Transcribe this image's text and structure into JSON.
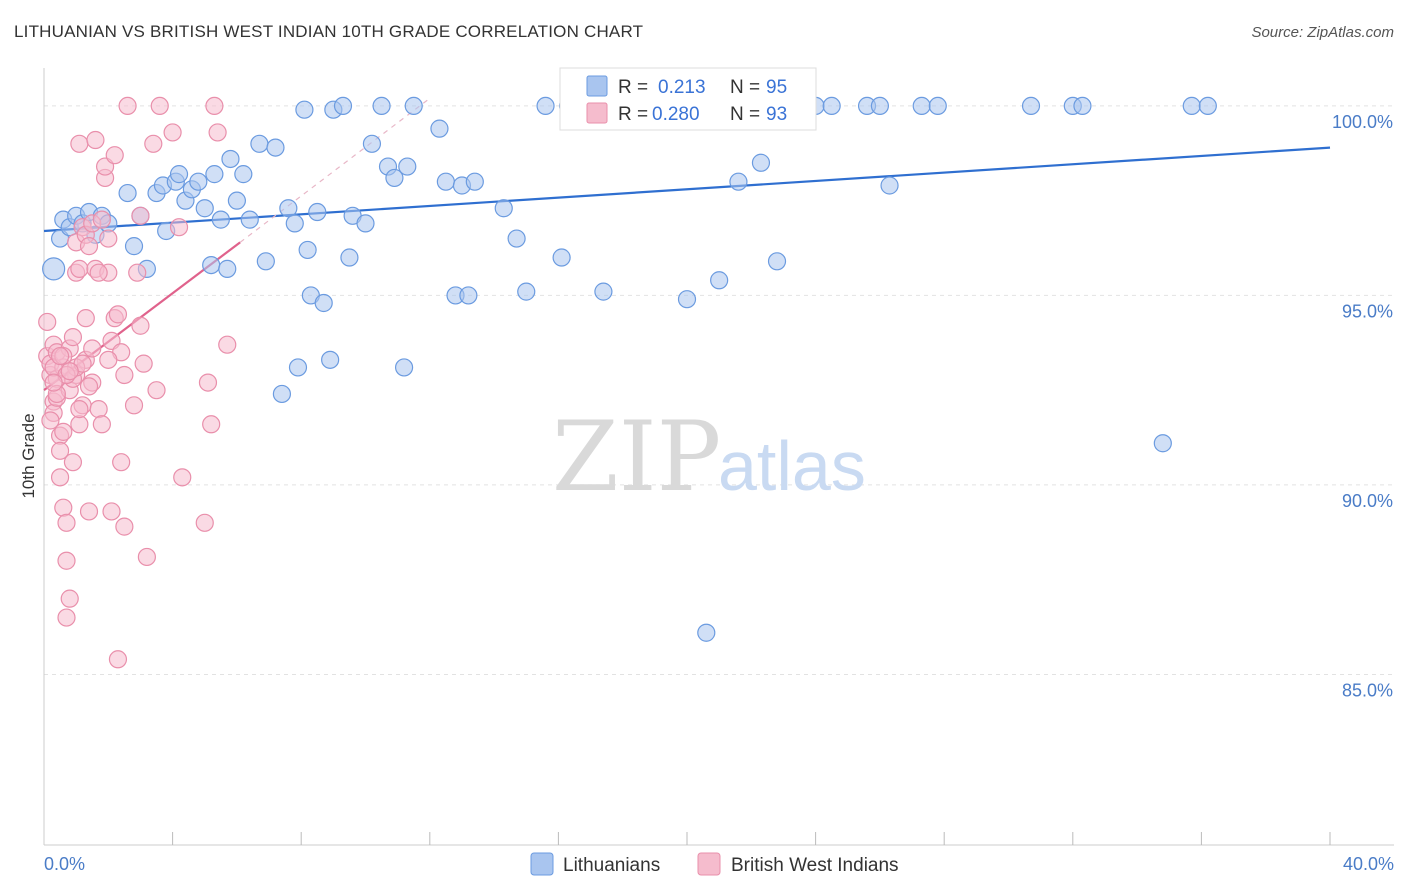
{
  "title": "LITHUANIAN VS BRITISH WEST INDIAN 10TH GRADE CORRELATION CHART",
  "source": "Source: ZipAtlas.com",
  "watermark": {
    "zip": "ZIP",
    "atlas": "atlas"
  },
  "chart_data": {
    "type": "scatter",
    "title": "LITHUANIAN VS BRITISH WEST INDIAN 10TH GRADE CORRELATION CHART",
    "xlabel": "",
    "ylabel": "10th Grade",
    "xlim": [
      0,
      40
    ],
    "ylim": [
      80.5,
      101
    ],
    "x_tick_labels": {
      "min": "0.0%",
      "max": "40.0%"
    },
    "y_ticks": [
      {
        "value": 100,
        "label": "100.0%"
      },
      {
        "value": 95,
        "label": "95.0%"
      },
      {
        "value": 90,
        "label": "90.0%"
      },
      {
        "value": 85,
        "label": "85.0%"
      }
    ],
    "grid": true,
    "legend_position": "top-center",
    "series": [
      {
        "name": "Lithuanians",
        "color": "#6b9be0",
        "fill": "#a9c5ef",
        "line_color": "#2f6fd0",
        "R": "0.213",
        "N": "95",
        "trend": {
          "x0": 0,
          "y0": 96.7,
          "x1": 40,
          "y1": 98.9
        },
        "points": [
          [
            0.3,
            95.7
          ],
          [
            0.5,
            96.5
          ],
          [
            0.6,
            97.0
          ],
          [
            0.8,
            96.8
          ],
          [
            1.0,
            97.1
          ],
          [
            1.2,
            96.9
          ],
          [
            1.4,
            97.2
          ],
          [
            1.6,
            96.6
          ],
          [
            1.8,
            97.1
          ],
          [
            2.0,
            96.9
          ],
          [
            2.6,
            97.7
          ],
          [
            2.8,
            96.3
          ],
          [
            3.0,
            97.1
          ],
          [
            3.2,
            95.7
          ],
          [
            3.5,
            97.7
          ],
          [
            3.7,
            97.9
          ],
          [
            3.8,
            96.7
          ],
          [
            4.1,
            98.0
          ],
          [
            4.2,
            98.2
          ],
          [
            4.4,
            97.5
          ],
          [
            4.6,
            97.8
          ],
          [
            4.8,
            98.0
          ],
          [
            5.0,
            97.3
          ],
          [
            5.2,
            95.8
          ],
          [
            5.3,
            98.2
          ],
          [
            5.5,
            97.0
          ],
          [
            5.7,
            95.7
          ],
          [
            5.8,
            98.6
          ],
          [
            6.0,
            97.5
          ],
          [
            6.2,
            98.2
          ],
          [
            6.4,
            97.0
          ],
          [
            6.7,
            99.0
          ],
          [
            6.9,
            95.9
          ],
          [
            7.2,
            98.9
          ],
          [
            7.4,
            92.4
          ],
          [
            7.6,
            97.3
          ],
          [
            7.8,
            96.9
          ],
          [
            7.9,
            93.1
          ],
          [
            8.1,
            99.9
          ],
          [
            8.2,
            96.2
          ],
          [
            8.3,
            95.0
          ],
          [
            8.5,
            97.2
          ],
          [
            8.7,
            94.8
          ],
          [
            8.9,
            93.3
          ],
          [
            9.0,
            99.9
          ],
          [
            9.3,
            100.0
          ],
          [
            9.5,
            96.0
          ],
          [
            9.6,
            97.1
          ],
          [
            10.0,
            96.9
          ],
          [
            10.2,
            99.0
          ],
          [
            10.5,
            100.0
          ],
          [
            10.7,
            98.4
          ],
          [
            10.9,
            98.1
          ],
          [
            11.2,
            93.1
          ],
          [
            11.3,
            98.4
          ],
          [
            11.5,
            100.0
          ],
          [
            12.3,
            99.4
          ],
          [
            12.5,
            98.0
          ],
          [
            12.8,
            95.0
          ],
          [
            13.0,
            97.9
          ],
          [
            13.2,
            95.0
          ],
          [
            13.4,
            98.0
          ],
          [
            14.3,
            97.3
          ],
          [
            14.7,
            96.5
          ],
          [
            15.0,
            95.1
          ],
          [
            15.6,
            100.0
          ],
          [
            16.1,
            96.0
          ],
          [
            16.3,
            100.0
          ],
          [
            17.0,
            100.0
          ],
          [
            17.4,
            95.1
          ],
          [
            18.0,
            100.0
          ],
          [
            18.5,
            100.0
          ],
          [
            19.0,
            100.0
          ],
          [
            19.8,
            100.0
          ],
          [
            20.0,
            94.9
          ],
          [
            20.2,
            100.0
          ],
          [
            20.6,
            86.1
          ],
          [
            21.0,
            95.4
          ],
          [
            21.4,
            100.0
          ],
          [
            21.6,
            98.0
          ],
          [
            22.3,
            98.5
          ],
          [
            22.8,
            95.9
          ],
          [
            24.0,
            100.0
          ],
          [
            24.5,
            100.0
          ],
          [
            25.6,
            100.0
          ],
          [
            26.0,
            100.0
          ],
          [
            26.3,
            97.9
          ],
          [
            27.3,
            100.0
          ],
          [
            27.8,
            100.0
          ],
          [
            30.7,
            100.0
          ],
          [
            32.0,
            100.0
          ],
          [
            32.3,
            100.0
          ],
          [
            35.7,
            100.0
          ],
          [
            36.2,
            100.0
          ],
          [
            34.8,
            91.1
          ]
        ]
      },
      {
        "name": "British West Indians",
        "color": "#e98fab",
        "fill": "#f5bccd",
        "line_color": "#e0628c",
        "R": "0.280",
        "N": "93",
        "trend": {
          "x0": 0,
          "y0": 92.5,
          "x1": 6.1,
          "y1": 96.4
        },
        "trend_dashed": {
          "x0": 6.1,
          "y0": 96.4,
          "x1": 12.0,
          "y1": 100.2
        },
        "points": [
          [
            0.1,
            94.3
          ],
          [
            0.1,
            93.4
          ],
          [
            0.2,
            92.9
          ],
          [
            0.2,
            93.2
          ],
          [
            0.3,
            93.7
          ],
          [
            0.3,
            92.2
          ],
          [
            0.3,
            91.9
          ],
          [
            0.4,
            93.5
          ],
          [
            0.4,
            92.3
          ],
          [
            0.4,
            92.8
          ],
          [
            0.5,
            91.3
          ],
          [
            0.5,
            90.9
          ],
          [
            0.5,
            90.2
          ],
          [
            0.6,
            93.1
          ],
          [
            0.6,
            91.4
          ],
          [
            0.6,
            89.4
          ],
          [
            0.7,
            89.0
          ],
          [
            0.7,
            88.0
          ],
          [
            0.7,
            86.5
          ],
          [
            0.8,
            87.0
          ],
          [
            0.8,
            93.6
          ],
          [
            0.8,
            92.5
          ],
          [
            0.9,
            90.6
          ],
          [
            0.9,
            93.9
          ],
          [
            1.0,
            95.6
          ],
          [
            1.0,
            92.9
          ],
          [
            1.0,
            96.4
          ],
          [
            1.1,
            99.0
          ],
          [
            1.1,
            95.7
          ],
          [
            1.1,
            91.6
          ],
          [
            1.2,
            96.8
          ],
          [
            1.2,
            92.1
          ],
          [
            1.3,
            94.4
          ],
          [
            1.3,
            93.3
          ],
          [
            1.3,
            96.6
          ],
          [
            1.4,
            96.3
          ],
          [
            1.4,
            89.3
          ],
          [
            1.5,
            93.6
          ],
          [
            1.5,
            92.7
          ],
          [
            1.6,
            99.1
          ],
          [
            1.6,
            95.7
          ],
          [
            1.7,
            92.0
          ],
          [
            1.8,
            91.6
          ],
          [
            1.9,
            98.1
          ],
          [
            1.9,
            98.4
          ],
          [
            2.0,
            95.6
          ],
          [
            2.0,
            96.5
          ],
          [
            2.1,
            89.3
          ],
          [
            2.1,
            93.8
          ],
          [
            2.2,
            98.7
          ],
          [
            2.2,
            94.4
          ],
          [
            2.3,
            94.5
          ],
          [
            2.4,
            93.5
          ],
          [
            2.4,
            90.6
          ],
          [
            2.5,
            92.9
          ],
          [
            2.5,
            88.9
          ],
          [
            2.6,
            100.0
          ],
          [
            2.8,
            92.1
          ],
          [
            2.9,
            95.6
          ],
          [
            3.0,
            97.1
          ],
          [
            3.1,
            93.2
          ],
          [
            3.2,
            88.1
          ],
          [
            3.4,
            99.0
          ],
          [
            3.5,
            92.5
          ],
          [
            3.6,
            100.0
          ],
          [
            4.0,
            99.3
          ],
          [
            4.2,
            96.8
          ],
          [
            4.3,
            90.2
          ],
          [
            5.0,
            89.0
          ],
          [
            5.1,
            92.7
          ],
          [
            5.2,
            91.6
          ],
          [
            5.3,
            100.0
          ],
          [
            5.4,
            99.3
          ],
          [
            5.7,
            93.7
          ],
          [
            2.3,
            85.4
          ],
          [
            0.3,
            93.1
          ],
          [
            0.9,
            92.8
          ],
          [
            1.5,
            96.9
          ],
          [
            1.8,
            97.0
          ],
          [
            0.4,
            92.4
          ],
          [
            0.6,
            93.4
          ],
          [
            0.2,
            91.7
          ],
          [
            1.0,
            93.1
          ],
          [
            0.7,
            92.9
          ],
          [
            1.2,
            93.2
          ],
          [
            1.7,
            95.6
          ],
          [
            2.0,
            93.3
          ],
          [
            1.4,
            92.6
          ],
          [
            0.5,
            93.4
          ],
          [
            3.0,
            94.2
          ],
          [
            0.3,
            92.7
          ],
          [
            0.8,
            93.0
          ],
          [
            1.1,
            92.0
          ]
        ]
      }
    ]
  }
}
